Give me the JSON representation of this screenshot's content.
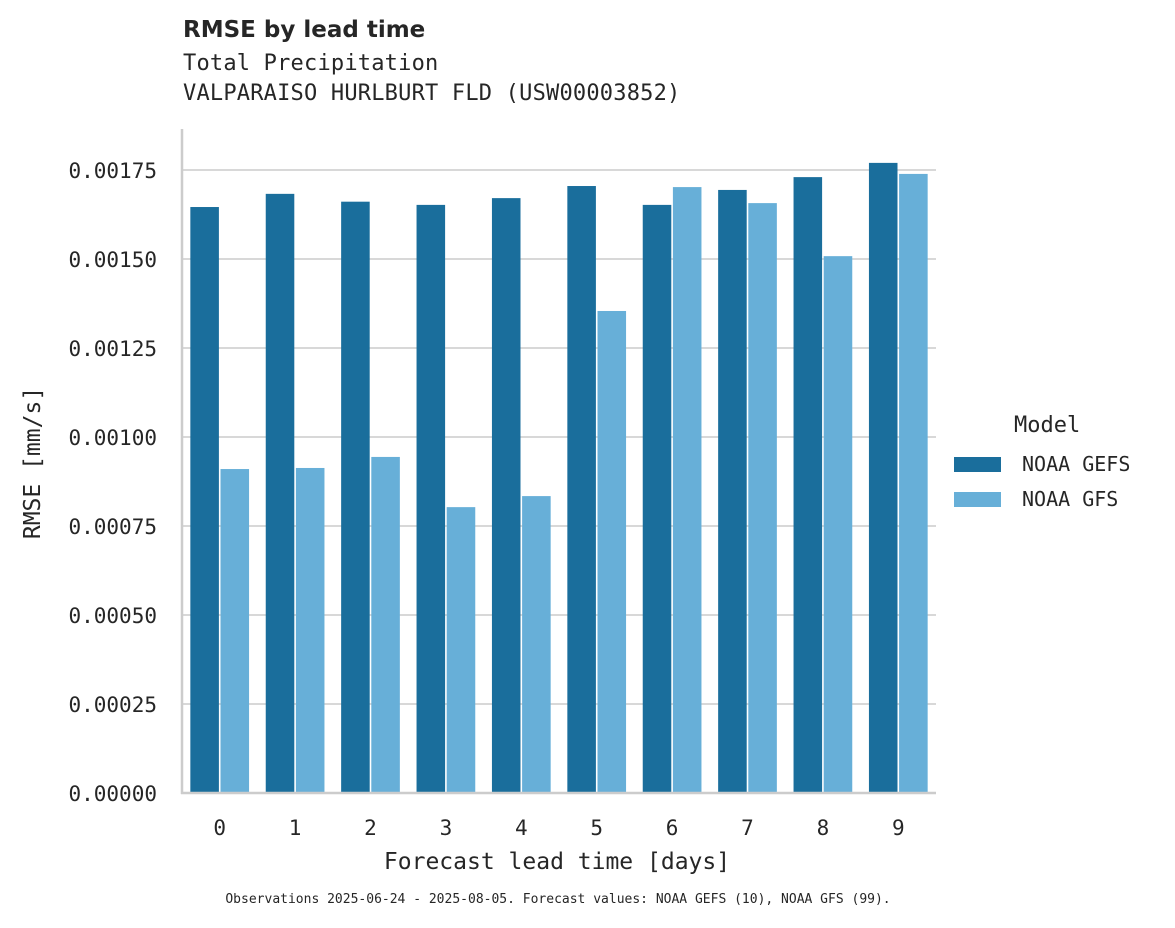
{
  "header": {
    "title": "RMSE by lead time",
    "subtitle_line1": "Total Precipitation",
    "subtitle_line2": "VALPARAISO HURLBURT FLD (USW00003852)"
  },
  "legend": {
    "title": "Model",
    "items": [
      {
        "label": "NOAA GEFS",
        "color": "#1a6e9c"
      },
      {
        "label": "NOAA GFS",
        "color": "#67afd8"
      }
    ]
  },
  "footer": {
    "note": "Observations 2025-06-24 - 2025-08-05. Forecast values: NOAA GEFS (10), NOAA GFS (99)."
  },
  "chart_data": {
    "type": "bar",
    "title": "RMSE by lead time",
    "subtitle": "Total Precipitation — VALPARAISO HURLBURT FLD (USW00003852)",
    "xlabel": "Forecast lead time [days]",
    "ylabel": "RMSE [mm/s]",
    "categories": [
      "0",
      "1",
      "2",
      "3",
      "4",
      "5",
      "6",
      "7",
      "8",
      "9"
    ],
    "series": [
      {
        "name": "NOAA GEFS",
        "color": "#1a6e9c",
        "values": [
          0.001646,
          0.001683,
          0.001661,
          0.001652,
          0.001671,
          0.001705,
          0.001652,
          0.001694,
          0.00173,
          0.00177
        ]
      },
      {
        "name": "NOAA GFS",
        "color": "#67afd8",
        "values": [
          0.00091,
          0.000913,
          0.000944,
          0.000803,
          0.000834,
          0.001354,
          0.001702,
          0.001657,
          0.001508,
          0.001739
        ]
      }
    ],
    "yticks": [
      "0.00000",
      "0.00025",
      "0.00050",
      "0.00075",
      "0.00100",
      "0.00125",
      "0.00150",
      "0.00175"
    ],
    "ytick_values": [
      0,
      0.00025,
      0.0005,
      0.00075,
      0.001,
      0.00125,
      0.0015,
      0.00175
    ],
    "ylim": [
      0,
      0.00186
    ],
    "grid": "horizontal",
    "legend_position": "right",
    "legend_title": "Model"
  }
}
